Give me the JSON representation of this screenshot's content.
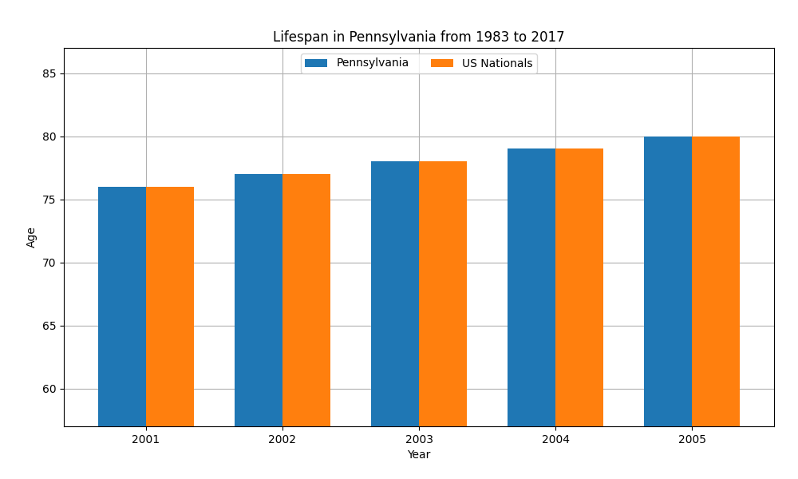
{
  "chart_data": {
    "type": "bar",
    "title": "Lifespan in Pennsylvania from 1983 to 2017",
    "x_label": "Year",
    "y_label": "Age",
    "categories": [
      "2001",
      "2002",
      "2003",
      "2004",
      "2005"
    ],
    "series": [
      {
        "name": "Pennsylvania",
        "values": [
          76.0,
          77.0,
          78.0,
          79.0,
          80.0
        ]
      },
      {
        "name": "US Nationals",
        "values": [
          76.0,
          77.0,
          78.0,
          79.0,
          80.0
        ]
      }
    ],
    "ylim": [
      57,
      87
    ],
    "yticks": [
      60,
      65,
      70,
      75,
      80,
      85
    ],
    "grid": true,
    "legend": "upper center"
  }
}
